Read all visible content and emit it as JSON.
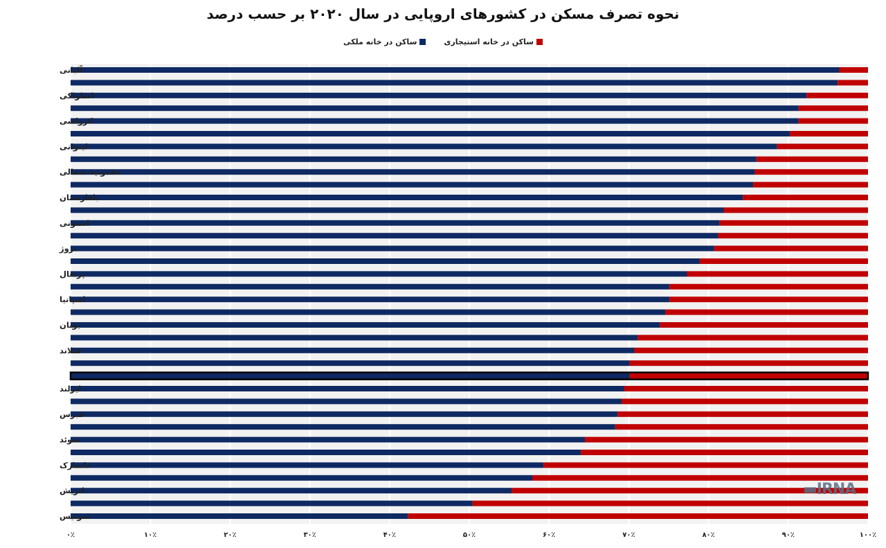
{
  "chart_data": {
    "type": "bar",
    "orientation": "horizontal",
    "stacked": true,
    "title": "نحوه تصرف مسکن در کشورهای اروپایی در سال ۲۰۲۰  بر حسب درصد",
    "xlabel": "",
    "ylabel": "",
    "xlim": [
      0,
      100
    ],
    "x_ticks": [
      "۰٪",
      "۱۰٪",
      "۲۰٪",
      "۳۰٪",
      "۴۰٪",
      "۵۰٪",
      "۶۰٪",
      "۷۰٪",
      "۸۰٪",
      "۹۰٪",
      "۱۰۰٪"
    ],
    "grid": true,
    "legend_position": "top",
    "categories": [
      "آلبانی",
      "",
      "اسلواکی",
      "",
      "کرواسی",
      "",
      "لیتوانی",
      "",
      "مقدونیه شمالی",
      "",
      "بلغارستان",
      "",
      "استونی",
      "",
      "نروژ",
      "",
      "پرتغال",
      "",
      "اسپانیا",
      "",
      "یونان",
      "",
      "فنلاند",
      "",
      "",
      "ایرلند",
      "",
      "قبرس",
      "",
      "سوئد",
      "",
      "دانمارک",
      "",
      "اتریش",
      "",
      "سوئیس"
    ],
    "highlighted_index": 24,
    "series": [
      {
        "name": "ساکن در خانه ملکی",
        "color": "#0f2a63",
        "values": [
          96.4,
          96.2,
          92.3,
          91.3,
          91.3,
          90.2,
          88.6,
          86.0,
          85.8,
          85.6,
          84.3,
          81.9,
          81.4,
          81.2,
          80.7,
          78.9,
          77.3,
          75.1,
          75.1,
          74.6,
          73.9,
          71.1,
          70.7,
          70.1,
          70.1,
          69.4,
          69.1,
          68.6,
          68.3,
          64.5,
          64.0,
          59.3,
          57.9,
          55.3,
          50.4,
          42.3
        ]
      },
      {
        "name": "ساکن در خانه استیجاری",
        "color": "#c00000",
        "values": [
          3.6,
          3.8,
          7.7,
          8.7,
          8.7,
          9.8,
          11.4,
          14.0,
          14.2,
          14.4,
          15.7,
          18.1,
          18.6,
          18.8,
          19.3,
          21.1,
          22.7,
          24.9,
          24.9,
          25.4,
          26.1,
          28.9,
          29.3,
          29.9,
          29.9,
          30.6,
          30.9,
          31.4,
          31.7,
          35.5,
          36.0,
          40.7,
          42.1,
          44.7,
          49.6,
          57.7
        ]
      }
    ]
  },
  "watermark": "IRNA"
}
